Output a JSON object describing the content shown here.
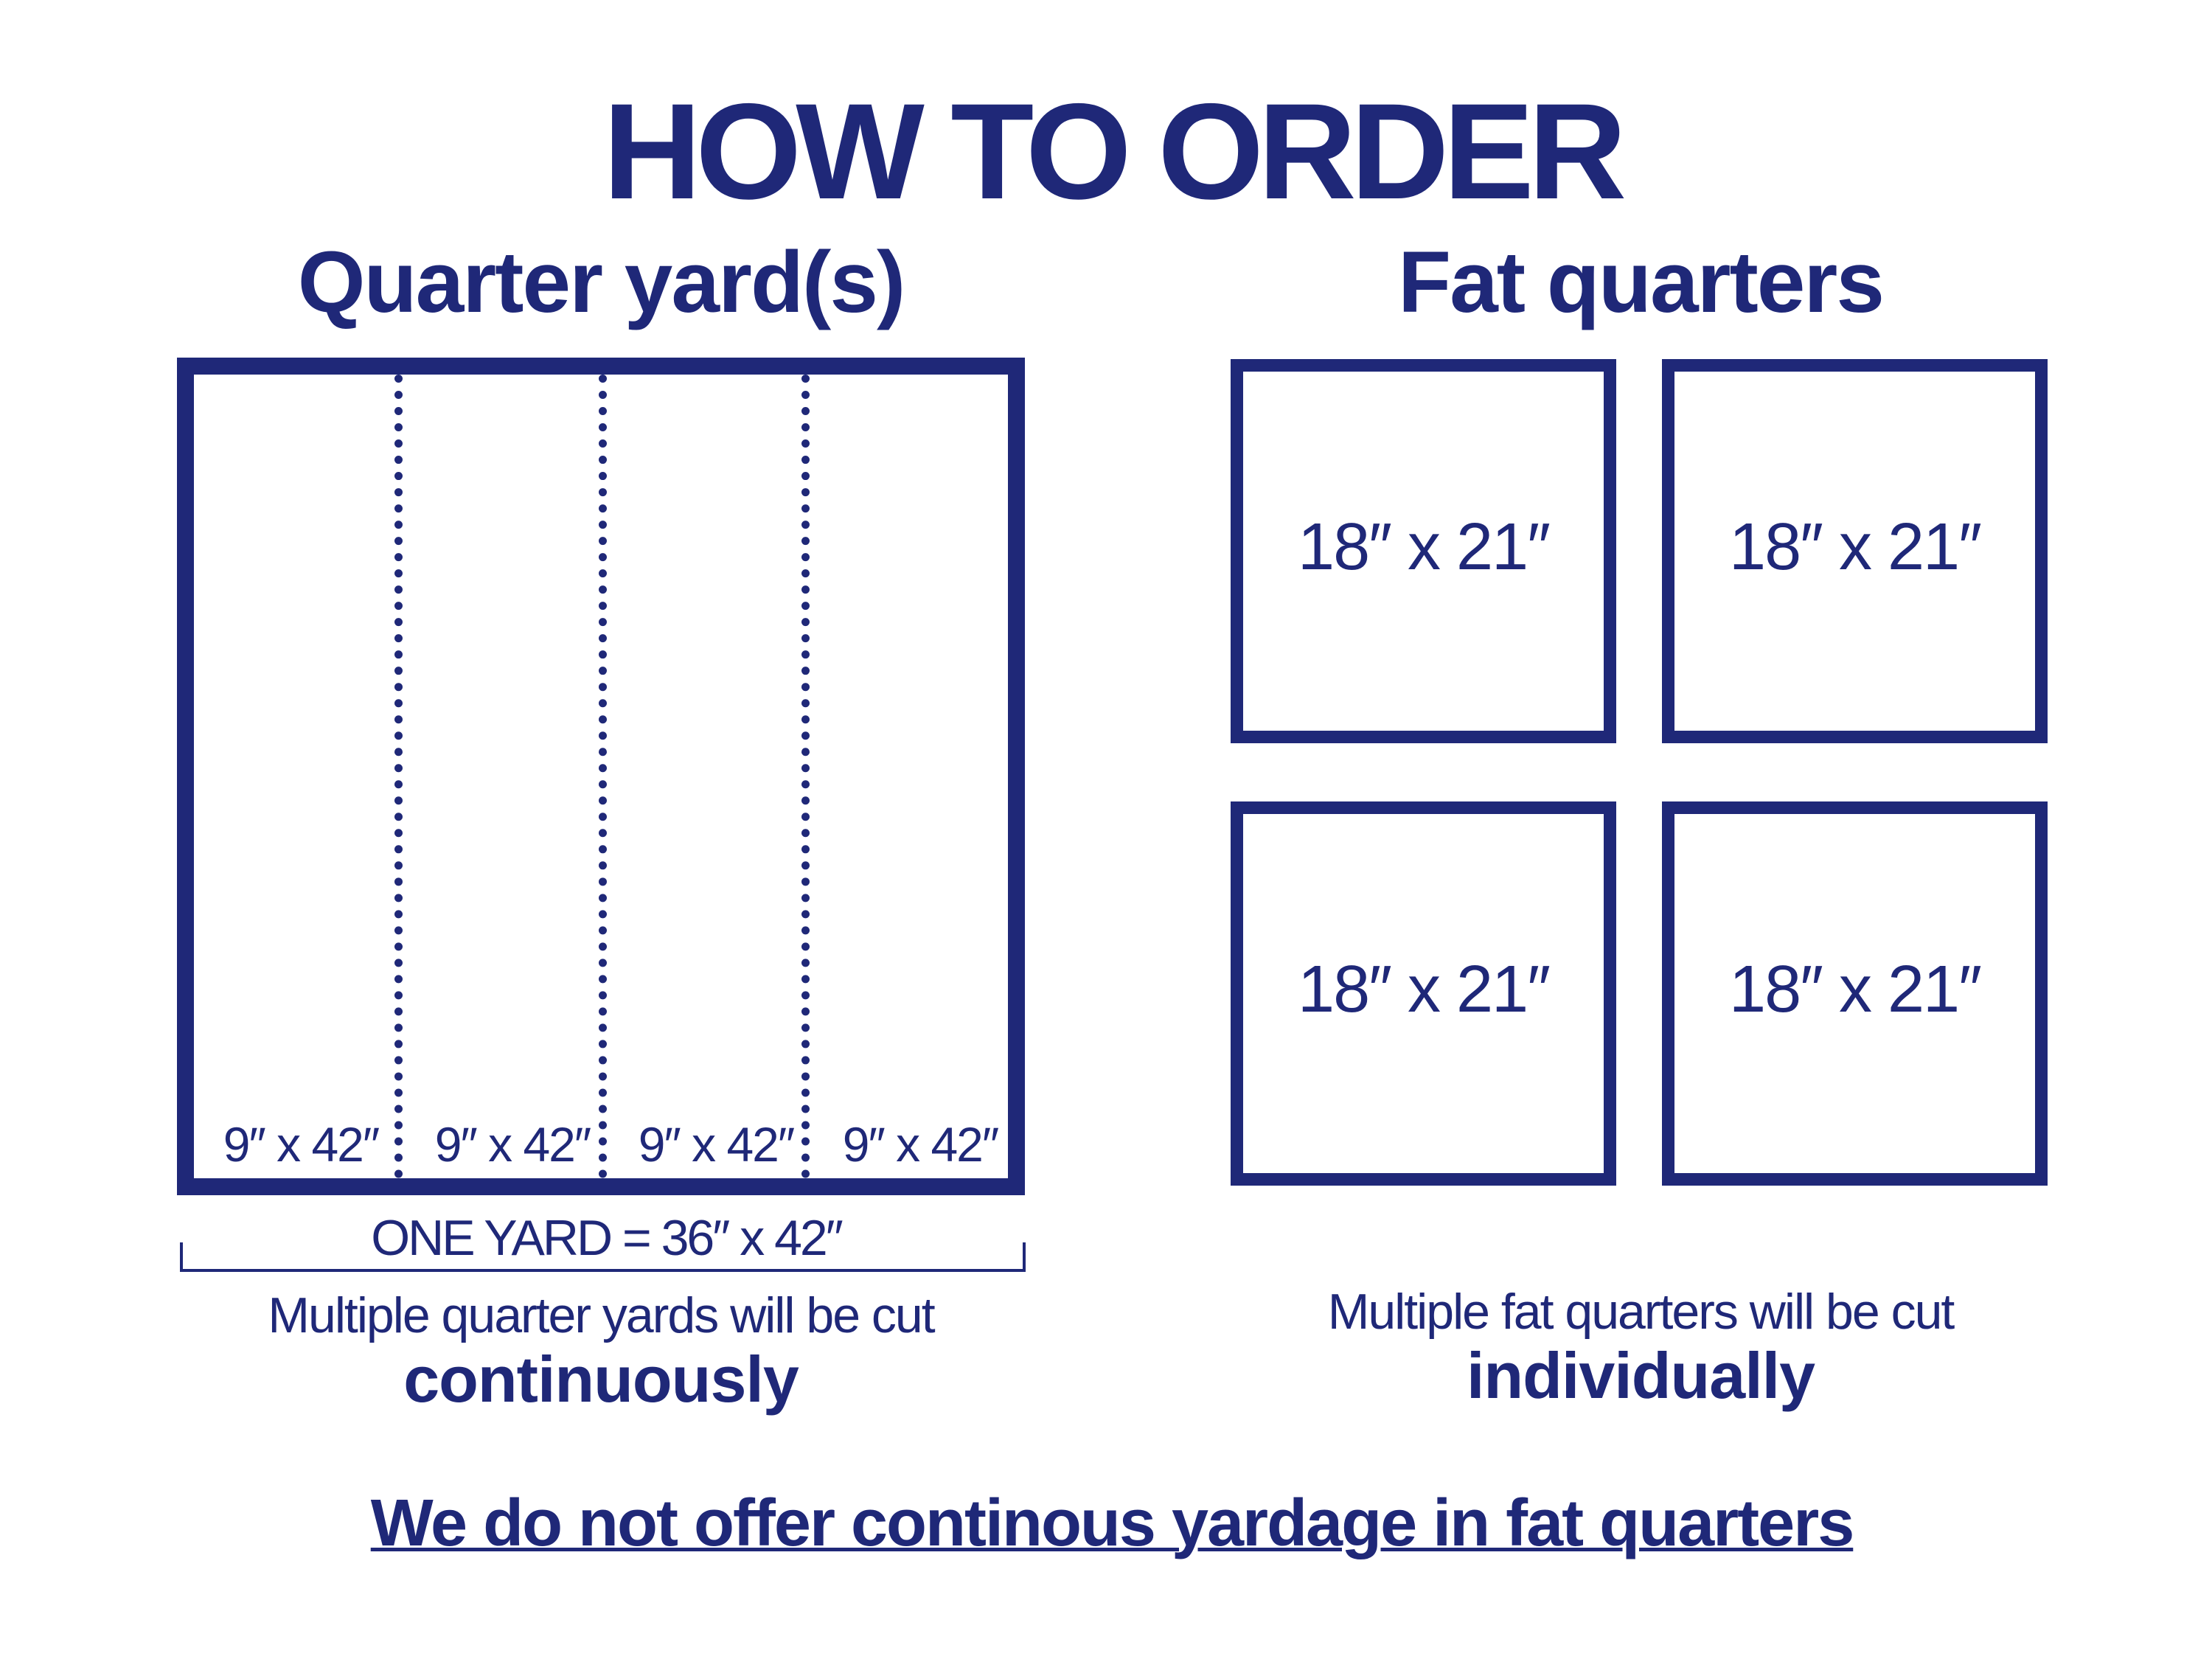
{
  "title": "HOW TO ORDER",
  "colors": {
    "primary": "#1f2878",
    "background": "#ffffff"
  },
  "quarter_yards": {
    "heading": "Quarter yard(s)",
    "pieces": [
      "9″ x 42″",
      "9″ x 42″",
      "9″ x 42″",
      "9″ x 42″"
    ],
    "one_yard": "ONE YARD = 36″ x 42″",
    "caption": "Multiple quarter yards will be cut",
    "caption_bold": "continuously"
  },
  "fat_quarters": {
    "heading": "Fat quarters",
    "pieces": [
      "18″ x 21″",
      "18″ x 21″",
      "18″ x 21″",
      "18″ x 21″"
    ],
    "caption": "Multiple fat quarters will be cut",
    "caption_bold": "individually"
  },
  "footer_note": "We do not offer continous yardage in fat quarters"
}
